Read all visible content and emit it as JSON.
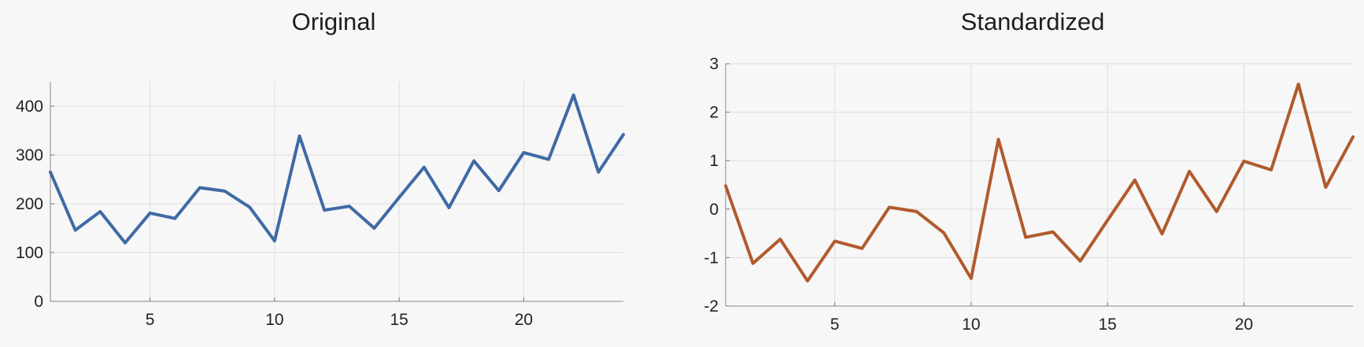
{
  "chart_data": [
    {
      "type": "line",
      "title": "Original",
      "xlabel": "",
      "ylabel": "",
      "xlim": [
        1,
        24
      ],
      "ylim": [
        0,
        450
      ],
      "xticks": [
        5,
        10,
        15,
        20
      ],
      "yticks": [
        0,
        100,
        200,
        300,
        400
      ],
      "grid": true,
      "color": "#3f6aa5",
      "x": [
        1,
        2,
        3,
        4,
        5,
        6,
        7,
        8,
        9,
        10,
        11,
        12,
        13,
        14,
        15,
        16,
        17,
        18,
        19,
        20,
        21,
        22,
        23,
        24
      ],
      "values": [
        265,
        146,
        184,
        120,
        181,
        170,
        233,
        226,
        193,
        124,
        339,
        187,
        195,
        150,
        213,
        275,
        192,
        288,
        227,
        305,
        291,
        423,
        265,
        342
      ]
    },
    {
      "type": "line",
      "title": "Standardized",
      "xlabel": "",
      "ylabel": "",
      "xlim": [
        1,
        24
      ],
      "ylim": [
        -2,
        3
      ],
      "xticks": [
        5,
        10,
        15,
        20
      ],
      "yticks": [
        -2,
        -1,
        0,
        1,
        2,
        3
      ],
      "grid": true,
      "color": "#b15a2d",
      "x": [
        1,
        2,
        3,
        4,
        5,
        6,
        7,
        8,
        9,
        10,
        11,
        12,
        13,
        14,
        15,
        16,
        17,
        18,
        19,
        20,
        21,
        22,
        23,
        24
      ],
      "values": [
        0.48,
        -1.12,
        -0.62,
        -1.48,
        -0.66,
        -0.81,
        0.04,
        -0.05,
        -0.49,
        -1.43,
        1.44,
        -0.58,
        -0.47,
        -1.07,
        -0.23,
        0.6,
        -0.51,
        0.78,
        -0.05,
        0.99,
        0.81,
        2.58,
        0.45,
        1.49
      ]
    }
  ]
}
